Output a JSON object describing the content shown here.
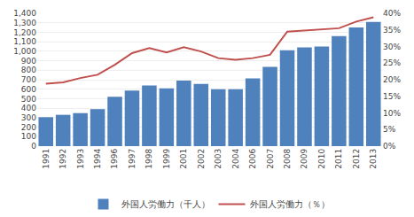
{
  "chart_data": {
    "type": "bar",
    "categories": [
      "1991",
      "1992",
      "1993",
      "1994",
      "1996",
      "1997",
      "1998",
      "1999",
      "2001",
      "2002",
      "2003",
      "2004",
      "2006",
      "2007",
      "2008",
      "2009",
      "2010",
      "2011",
      "2012",
      "2013"
    ],
    "series": [
      {
        "name": "外国人労働力（千人）",
        "type": "bar",
        "color": "#4F81BD",
        "values": [
          305,
          330,
          348,
          390,
          520,
          585,
          640,
          610,
          690,
          655,
          600,
          600,
          715,
          835,
          1010,
          1040,
          1050,
          1160,
          1250,
          1310
        ]
      },
      {
        "name": "外国人労働力（％）",
        "type": "line",
        "color": "#C0504D",
        "axis": "y2",
        "values": [
          18.8,
          19.2,
          20.5,
          21.5,
          24.5,
          28.0,
          29.5,
          28.2,
          29.8,
          28.5,
          26.5,
          26.0,
          26.5,
          27.5,
          34.5,
          34.8,
          35.0,
          35.5,
          37.5,
          38.8
        ]
      }
    ],
    "ylim": [
      0,
      1400
    ],
    "yticks": [
      0,
      100,
      200,
      300,
      400,
      500,
      600,
      700,
      800,
      900,
      {
        "value": 1000,
        "label": "1,000"
      },
      {
        "value": 1100,
        "label": "1,100"
      },
      {
        "value": 1200,
        "label": "1,200"
      },
      {
        "value": 1300,
        "label": "1,300"
      },
      {
        "value": 1400,
        "label": "1,400"
      }
    ],
    "y2lim": [
      0,
      40
    ],
    "y2ticks": [
      {
        "value": 0,
        "label": "0%"
      },
      {
        "value": 5,
        "label": "5%"
      },
      {
        "value": 10,
        "label": "10%"
      },
      {
        "value": 15,
        "label": "15%"
      },
      {
        "value": 20,
        "label": "20%"
      },
      {
        "value": 25,
        "label": "25%"
      },
      {
        "value": 30,
        "label": "30%"
      },
      {
        "value": 35,
        "label": "35%"
      },
      {
        "value": 40,
        "label": "40%"
      }
    ],
    "grid": true,
    "legend": "bottom"
  }
}
